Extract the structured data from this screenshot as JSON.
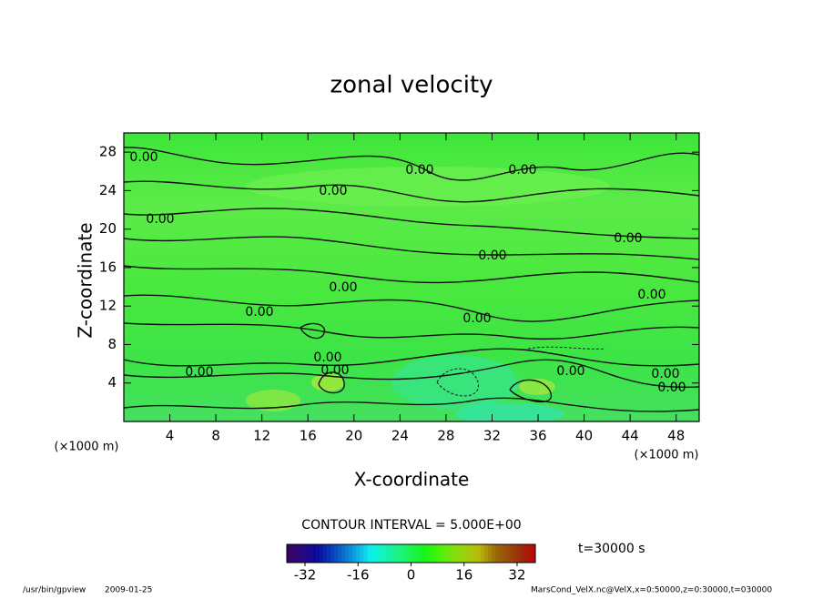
{
  "chart_data": {
    "type": "contour",
    "title": "zonal velocity",
    "xlabel": "X-coordinate",
    "ylabel": "Z-coordinate",
    "xunit": "(×1000 m)",
    "xunit_right": "(×1000 m)",
    "xlim": [
      0,
      50
    ],
    "xticks": [
      4,
      8,
      12,
      16,
      20,
      24,
      28,
      32,
      36,
      40,
      44,
      48
    ],
    "ylim": [
      0,
      30
    ],
    "yticks": [
      4,
      8,
      12,
      16,
      20,
      24,
      28
    ],
    "contour_labels": [
      "0.00",
      "0.00",
      "0.00",
      "0.00",
      "0.00",
      "0.00",
      "0.00",
      "0.00",
      "0.00",
      "0.00",
      "0.00",
      "0.00",
      "0.00",
      "0.00",
      "0.00",
      "0.00",
      "0.00"
    ],
    "contour_interval": "CONTOUR INTERVAL = 5.000E+00",
    "time_label": "t=30000 s",
    "colorbar": {
      "lim": [
        -37.5,
        37.5
      ],
      "ticks": [
        -32,
        -16,
        0,
        16,
        32
      ]
    },
    "footer_left": "/usr/bin/gpview",
    "footer_date": "2009-01-25",
    "footer_right": "MarsCond_VelX.nc@VelX,x=0:50000,z=0:30000,t=030000"
  }
}
